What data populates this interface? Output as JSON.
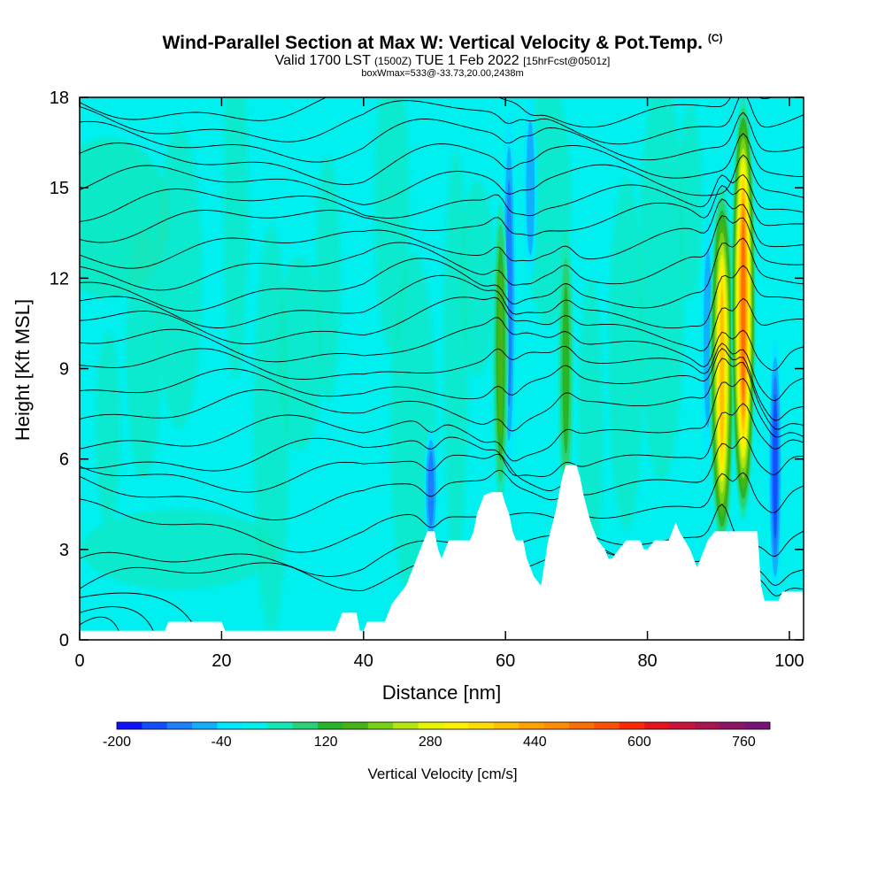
{
  "header": {
    "title": "Wind-Parallel Section at Max W: Vertical Velocity & Pot.Temp.",
    "copyright": "(C)",
    "valid_prefix": "Valid 1700 LST",
    "valid_utc": "(1500Z)",
    "valid_date": "TUE 1 Feb 2022",
    "forecast": "[15hrFcst@0501z]",
    "box_info": "boxWmax=533@-33.73,20.00,2438m"
  },
  "chart_data": {
    "type": "heatmap",
    "xlabel": "Distance [nm]",
    "ylabel": "Height [Kft MSL]",
    "xlim": [
      0,
      102
    ],
    "ylim": [
      0,
      18
    ],
    "x_ticks": [
      0,
      20,
      40,
      60,
      80,
      100
    ],
    "y_ticks": [
      0,
      3,
      6,
      9,
      12,
      15,
      18
    ],
    "colorbar": {
      "title": "Vertical Velocity [cm/s]",
      "labels": [
        "-200",
        "-40",
        "120",
        "280",
        "440",
        "600",
        "760"
      ],
      "label_values": [
        -200,
        -40,
        120,
        280,
        440,
        600,
        760
      ],
      "levels": [
        -200,
        -160,
        -120,
        -80,
        -40,
        0,
        40,
        80,
        120,
        160,
        200,
        240,
        280,
        320,
        360,
        400,
        440,
        480,
        520,
        560,
        600,
        640,
        680,
        720,
        760,
        800
      ],
      "colors": [
        "#1010ff",
        "#1050ff",
        "#1a80ff",
        "#10b0ff",
        "#00e8ff",
        "#00f0f0",
        "#14e6b4",
        "#28d278",
        "#28b428",
        "#46b414",
        "#78d214",
        "#b4e614",
        "#e6f500",
        "#fff000",
        "#ffdc00",
        "#ffc000",
        "#ffa000",
        "#ff8c00",
        "#ff6e00",
        "#ff5000",
        "#ff2800",
        "#e6141e",
        "#c8143c",
        "#aa1450",
        "#8c1464",
        "#781478"
      ]
    },
    "updraft_cores": [
      {
        "x": 59.3,
        "bottom": 4.5,
        "top": 14.5,
        "peak": 160
      },
      {
        "x": 68.5,
        "bottom": 4.5,
        "top": 13.5,
        "peak": 130
      },
      {
        "x": 90.5,
        "bottom": 3.0,
        "top": 15.0,
        "peak": 420
      },
      {
        "x": 93.5,
        "bottom": 4.0,
        "top": 18.0,
        "peak": 533
      }
    ],
    "downdraft_cores": [
      {
        "x": 49.5,
        "bottom": 3.0,
        "top": 7.0,
        "peak": -150
      },
      {
        "x": 60.5,
        "bottom": 5.5,
        "top": 17.5,
        "peak": -120
      },
      {
        "x": 63.5,
        "bottom": 12.0,
        "top": 18.0,
        "peak": -80
      },
      {
        "x": 88.5,
        "bottom": 6.0,
        "top": 14.0,
        "peak": -80
      },
      {
        "x": 98.0,
        "bottom": 1.5,
        "top": 10.0,
        "peak": -160
      }
    ],
    "terrain": [
      [
        0,
        0.3
      ],
      [
        12,
        0.3
      ],
      [
        12.5,
        0.6
      ],
      [
        20,
        0.6
      ],
      [
        20.5,
        0.3
      ],
      [
        36,
        0.3
      ],
      [
        37,
        0.9
      ],
      [
        39,
        0.9
      ],
      [
        39.5,
        0.3
      ],
      [
        40,
        0.3
      ],
      [
        40.5,
        0.6
      ],
      [
        43,
        0.6
      ],
      [
        44,
        1.2
      ],
      [
        46,
        1.8
      ],
      [
        47,
        2.4
      ],
      [
        48,
        3.0
      ],
      [
        49,
        3.6
      ],
      [
        50,
        3.6
      ],
      [
        50.5,
        3.0
      ],
      [
        51,
        2.7
      ],
      [
        51.5,
        3.0
      ],
      [
        52,
        3.3
      ],
      [
        55,
        3.3
      ],
      [
        55.5,
        3.6
      ],
      [
        56,
        4.2
      ],
      [
        57,
        4.8
      ],
      [
        58,
        4.9
      ],
      [
        59.5,
        4.9
      ],
      [
        60,
        4.5
      ],
      [
        60.5,
        4.2
      ],
      [
        61,
        3.6
      ],
      [
        61.5,
        3.3
      ],
      [
        62.5,
        3.3
      ],
      [
        63,
        2.7
      ],
      [
        64,
        2.1
      ],
      [
        65,
        1.8
      ],
      [
        66,
        3.3
      ],
      [
        67,
        4.2
      ],
      [
        68,
        5.4
      ],
      [
        68.5,
        5.8
      ],
      [
        70,
        5.8
      ],
      [
        70.5,
        5.4
      ],
      [
        71,
        4.8
      ],
      [
        72,
        3.9
      ],
      [
        73,
        3.3
      ],
      [
        74,
        3.0
      ],
      [
        74.5,
        2.7
      ],
      [
        75,
        2.7
      ],
      [
        76,
        3.0
      ],
      [
        77,
        3.3
      ],
      [
        79,
        3.3
      ],
      [
        79.5,
        3.0
      ],
      [
        80,
        3.0
      ],
      [
        81,
        3.3
      ],
      [
        83,
        3.3
      ],
      [
        83.5,
        3.6
      ],
      [
        84,
        3.9
      ],
      [
        84.5,
        3.6
      ],
      [
        86,
        3.0
      ],
      [
        87,
        2.4
      ],
      [
        87.5,
        2.7
      ],
      [
        88.5,
        3.3
      ],
      [
        89.5,
        3.6
      ],
      [
        94,
        3.6
      ],
      [
        95.5,
        3.6
      ],
      [
        96,
        1.8
      ],
      [
        96.5,
        1.3
      ],
      [
        98.5,
        1.3
      ],
      [
        99,
        1.6
      ],
      [
        102,
        1.6
      ]
    ],
    "theta_levels": [
      {
        "base": 2.3,
        "label": "",
        "label_x": 0
      },
      {
        "base": 2.8,
        "label": "",
        "label_x": 0
      },
      {
        "base": 3.6,
        "label": "",
        "label_x": 24
      },
      {
        "base": 4.6,
        "label": "",
        "label_x": 0
      },
      {
        "base": 5.4,
        "label": "",
        "label_x": 0
      },
      {
        "base": 6.1,
        "label": "",
        "label_x": 35
      },
      {
        "base": 6.8,
        "label": "",
        "label_x": 0
      },
      {
        "base": 7.6,
        "label": "",
        "label_x": 0
      },
      {
        "base": 8.3,
        "label": "",
        "label_x": 0
      },
      {
        "base": 9.0,
        "label": "",
        "label_x": 25
      },
      {
        "base": 9.7,
        "label": "",
        "label_x": 0
      },
      {
        "base": 10.4,
        "label": "",
        "label_x": 37
      },
      {
        "base": 11.0,
        "label": "",
        "label_x": 0
      },
      {
        "base": 11.6,
        "label": "",
        "label_x": 0
      },
      {
        "base": 12.3,
        "label": "",
        "label_x": 34
      },
      {
        "base": 13.0,
        "label": "",
        "label_x": 0
      },
      {
        "base": 13.8,
        "label": "",
        "label_x": 0
      },
      {
        "base": 14.4,
        "label": "",
        "label_x": 26
      },
      {
        "base": 15.1,
        "label": "",
        "label_x": 0
      },
      {
        "base": 15.8,
        "label": "",
        "label_x": 0
      },
      {
        "base": 16.5,
        "label": "",
        "label_x": 22
      },
      {
        "base": 17.1,
        "label": "",
        "label_x": 0
      },
      {
        "base": 17.7,
        "label": "",
        "label_x": 0
      }
    ]
  }
}
